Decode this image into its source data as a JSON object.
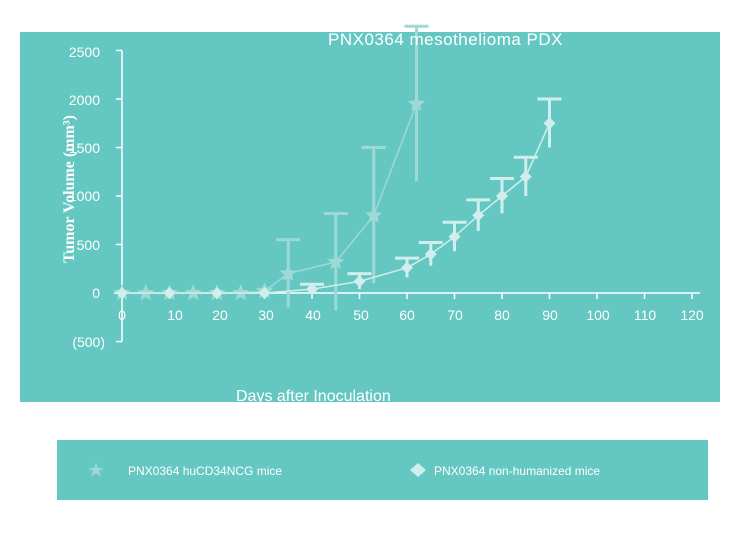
{
  "chart_data": {
    "type": "line",
    "title": "PNX0364 mesothelioma PDX",
    "xlabel": "Days after Inoculation",
    "ylabel": "Tumor Volume (mm³)",
    "xlim": [
      0,
      120
    ],
    "ylim": [
      -500,
      2500
    ],
    "x_ticks": [
      "0",
      "10",
      "20",
      "30",
      "40",
      "50",
      "60",
      "70",
      "80",
      "90",
      "100",
      "110",
      "120"
    ],
    "y_ticks": [
      "2500",
      "2000",
      "1500",
      "1000",
      "500",
      "0",
      "(500)"
    ],
    "grid": false,
    "legend_position": "bottom",
    "series": [
      {
        "name": "PNX0364 huCD34NCG mice",
        "color": "#9dd9d5",
        "marker": "star",
        "x": [
          0,
          5,
          10,
          15,
          20,
          25,
          30,
          35,
          45,
          53,
          62
        ],
        "y": [
          0,
          0,
          0,
          0,
          0,
          0,
          20,
          200,
          320,
          800,
          1950
        ],
        "error": [
          0,
          0,
          0,
          0,
          0,
          0,
          0,
          350,
          500,
          700,
          800
        ]
      },
      {
        "name": "PNX0364 non-humanized mice",
        "color": "#d0eeec",
        "marker": "diamond",
        "x": [
          0,
          10,
          20,
          30,
          40,
          50,
          60,
          65,
          70,
          75,
          80,
          85,
          90
        ],
        "y": [
          0,
          0,
          0,
          0,
          40,
          120,
          260,
          400,
          580,
          800,
          1000,
          1200,
          1750
        ],
        "error": [
          0,
          0,
          0,
          0,
          50,
          80,
          100,
          120,
          150,
          160,
          180,
          200,
          250
        ]
      }
    ]
  },
  "legend": {
    "items": [
      {
        "label": "PNX0364 huCD34NCG mice"
      },
      {
        "label": "PNX0364 non-humanized mice"
      }
    ]
  }
}
